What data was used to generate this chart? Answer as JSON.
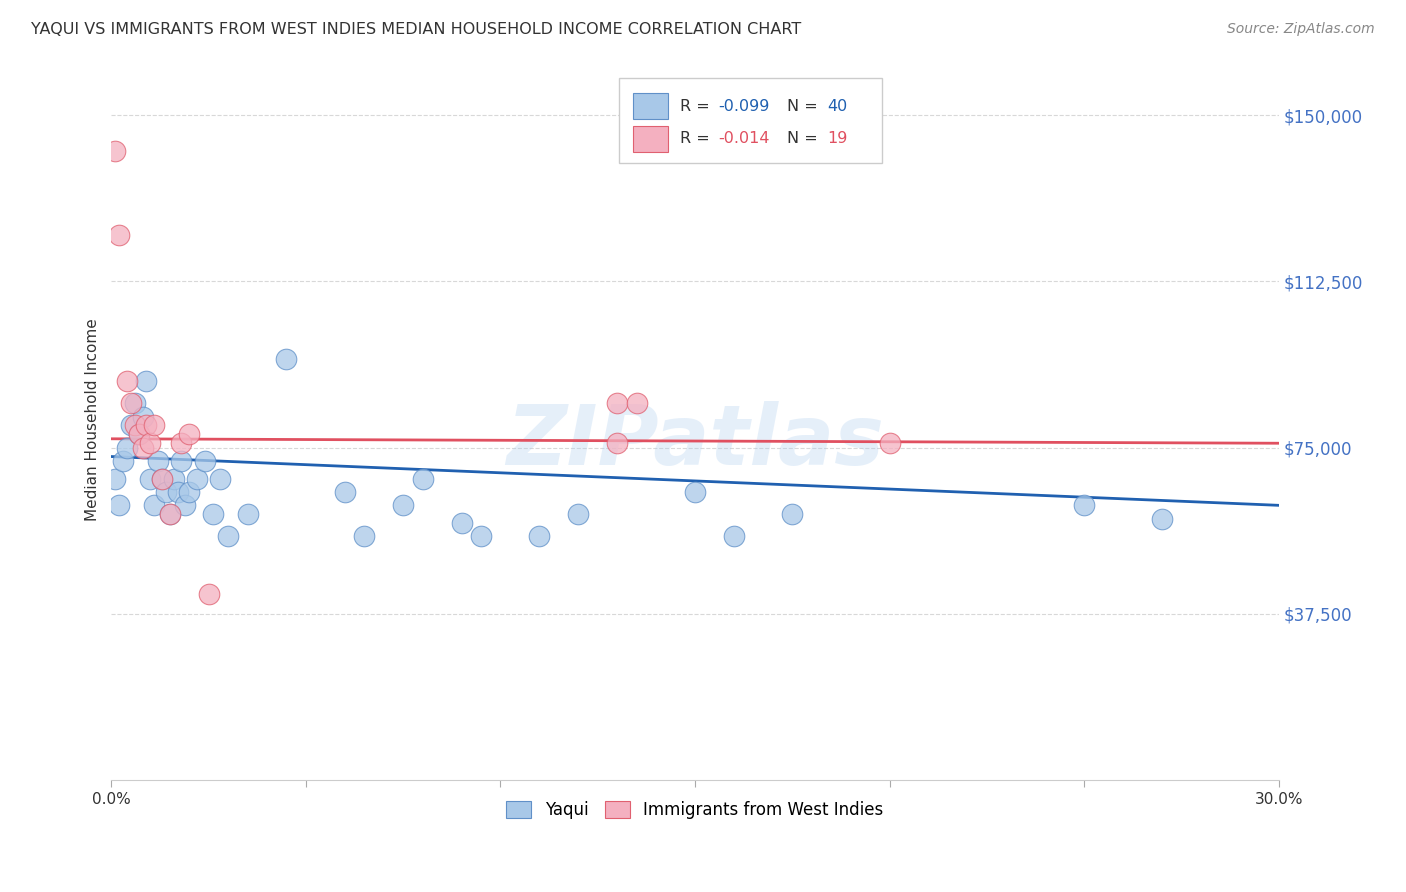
{
  "title": "YAQUI VS IMMIGRANTS FROM WEST INDIES MEDIAN HOUSEHOLD INCOME CORRELATION CHART",
  "source": "Source: ZipAtlas.com",
  "ylabel": "Median Household Income",
  "xlim": [
    0.0,
    0.3
  ],
  "ylim": [
    0,
    162500
  ],
  "yticks": [
    37500,
    75000,
    112500,
    150000
  ],
  "ytick_labels": [
    "$37,500",
    "$75,000",
    "$112,500",
    "$150,000"
  ],
  "xticks": [
    0.0,
    0.05,
    0.1,
    0.15,
    0.2,
    0.25,
    0.3
  ],
  "xtick_labels": [
    "0.0%",
    "",
    "",
    "",
    "",
    "",
    "30.0%"
  ],
  "background_color": "#ffffff",
  "grid_color": "#d8d8d8",
  "watermark": "ZIPatlas",
  "blue_fill": "#a8c8e8",
  "pink_fill": "#f4b0c0",
  "blue_edge": "#6090c8",
  "pink_edge": "#e06070",
  "blue_line_color": "#2060b0",
  "pink_line_color": "#e05060",
  "blue_points_x": [
    0.001,
    0.002,
    0.003,
    0.004,
    0.005,
    0.006,
    0.007,
    0.008,
    0.009,
    0.01,
    0.011,
    0.012,
    0.013,
    0.014,
    0.015,
    0.016,
    0.017,
    0.018,
    0.019,
    0.02,
    0.022,
    0.024,
    0.026,
    0.028,
    0.03,
    0.035,
    0.045,
    0.06,
    0.065,
    0.075,
    0.08,
    0.09,
    0.095,
    0.11,
    0.12,
    0.15,
    0.16,
    0.175,
    0.25,
    0.27
  ],
  "blue_points_y": [
    68000,
    62000,
    72000,
    75000,
    80000,
    85000,
    78000,
    82000,
    90000,
    68000,
    62000,
    72000,
    68000,
    65000,
    60000,
    68000,
    65000,
    72000,
    62000,
    65000,
    68000,
    72000,
    60000,
    68000,
    55000,
    60000,
    95000,
    65000,
    55000,
    62000,
    68000,
    58000,
    55000,
    55000,
    60000,
    65000,
    55000,
    60000,
    62000,
    59000
  ],
  "pink_points_x": [
    0.001,
    0.002,
    0.004,
    0.005,
    0.006,
    0.007,
    0.008,
    0.009,
    0.01,
    0.011,
    0.013,
    0.015,
    0.018,
    0.02,
    0.025,
    0.13,
    0.135,
    0.2,
    0.13
  ],
  "pink_points_y": [
    142000,
    123000,
    90000,
    85000,
    80000,
    78000,
    75000,
    80000,
    76000,
    80000,
    68000,
    60000,
    76000,
    78000,
    42000,
    85000,
    85000,
    76000,
    76000
  ],
  "blue_line_x0": 0.0,
  "blue_line_y0": 73000,
  "blue_line_x1": 0.3,
  "blue_line_y1": 62000,
  "pink_line_x0": 0.0,
  "pink_line_y0": 77000,
  "pink_line_x1": 0.3,
  "pink_line_y1": 76000
}
